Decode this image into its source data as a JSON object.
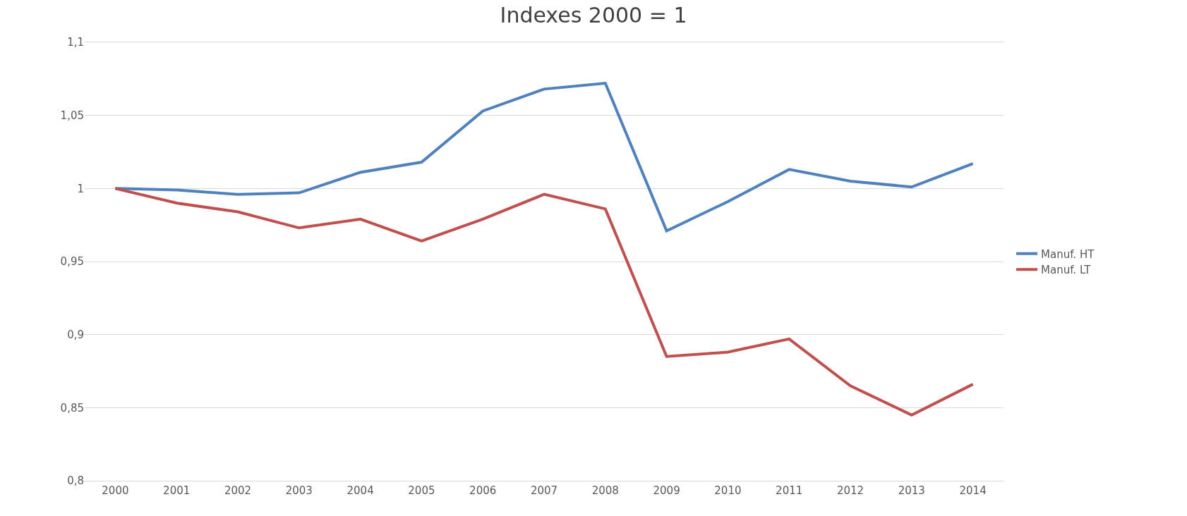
{
  "chart_data": {
    "type": "line",
    "title": "Indexes 2000 = 1",
    "categories": [
      "2000",
      "2001",
      "2002",
      "2003",
      "2004",
      "2005",
      "2006",
      "2007",
      "2008",
      "2009",
      "2010",
      "2011",
      "2012",
      "2013",
      "2014"
    ],
    "series": [
      {
        "name": "Manuf. HT",
        "color": "#4f81bd",
        "values": [
          1.0,
          0.999,
          0.996,
          0.997,
          1.011,
          1.018,
          1.053,
          1.068,
          1.072,
          0.971,
          0.991,
          1.013,
          1.005,
          1.001,
          1.017
        ]
      },
      {
        "name": "Manuf. LT",
        "color": "#c0504d",
        "values": [
          1.0,
          0.99,
          0.984,
          0.973,
          0.979,
          0.964,
          0.979,
          0.996,
          0.986,
          0.885,
          0.888,
          0.897,
          0.865,
          0.845,
          0.866
        ]
      }
    ],
    "ylim": [
      0.8,
      1.1
    ],
    "yticks": [
      {
        "value": 0.8,
        "label": "0,8"
      },
      {
        "value": 0.85,
        "label": "0,85"
      },
      {
        "value": 0.9,
        "label": "0,9"
      },
      {
        "value": 0.95,
        "label": "0,95"
      },
      {
        "value": 1,
        "label": "1"
      },
      {
        "value": 1.05,
        "label": "1,05"
      },
      {
        "value": 1.1,
        "label": "1,1"
      }
    ],
    "grid": "y",
    "legend": "right",
    "marker": "none",
    "line_style": "solid"
  }
}
